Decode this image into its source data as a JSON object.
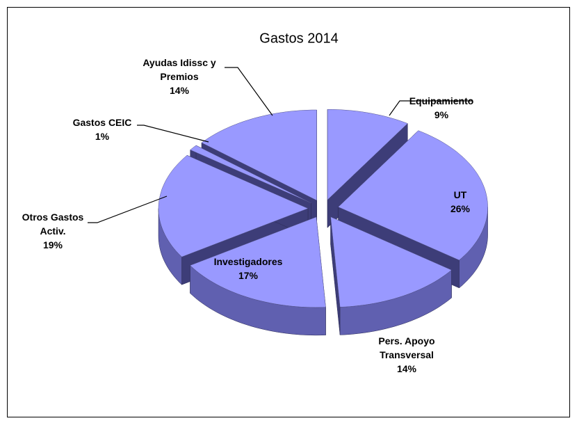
{
  "chart_data": {
    "type": "pie3d",
    "title": "Gastos 2014",
    "categories": [
      "Equipamiento",
      "UT",
      "Pers. Apoyo Transversal",
      "Investigadores",
      "Otros Gastos Activ.",
      "Gastos CEIC",
      "Ayudas Idissc y Premios"
    ],
    "values": [
      9,
      26,
      14,
      17,
      19,
      1,
      14
    ],
    "value_labels": [
      "9%",
      "26%",
      "14%",
      "17%",
      "19%",
      "1%",
      "14%"
    ],
    "color": "#9999ff"
  }
}
